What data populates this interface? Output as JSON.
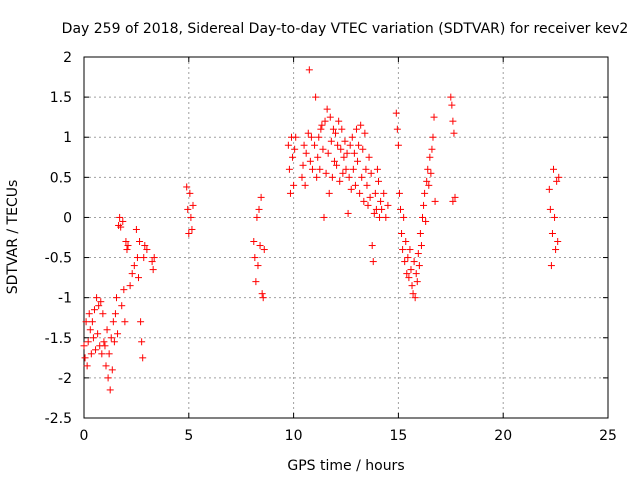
{
  "chart_data": {
    "type": "scatter",
    "title": "Day 259 of 2018, Sidereal Day-to-day VTEC variation (SDTVAR) for receiver kev2",
    "xlabel": "GPS time / hours",
    "ylabel": "SDTVAR / TECUs",
    "xlim": [
      0,
      25
    ],
    "ylim": [
      -2.5,
      2
    ],
    "xticks": [
      0,
      5,
      10,
      15,
      20,
      25
    ],
    "xtick_labels": [
      "0",
      "5",
      "10",
      "15",
      "20",
      "25"
    ],
    "yticks": [
      -2.5,
      -2,
      -1.5,
      -1,
      -0.5,
      0,
      0.5,
      1,
      1.5,
      2
    ],
    "ytick_labels": [
      "-2.5",
      "-2",
      "-1.5",
      "-1",
      "-0.5",
      "0",
      "0.5",
      "1",
      "1.5",
      "2"
    ],
    "grid": true,
    "marker": "+",
    "color": "#ff0000",
    "series": [
      {
        "name": "SDTVAR kev2",
        "points": [
          [
            0.0,
            -1.6
          ],
          [
            0.05,
            -1.75
          ],
          [
            0.1,
            -1.3
          ],
          [
            0.15,
            -1.85
          ],
          [
            0.2,
            -1.55
          ],
          [
            0.25,
            -1.2
          ],
          [
            0.3,
            -1.4
          ],
          [
            0.35,
            -1.7
          ],
          [
            0.4,
            -1.3
          ],
          [
            0.45,
            -1.5
          ],
          [
            0.5,
            -1.15
          ],
          [
            0.55,
            -1.65
          ],
          [
            0.6,
            -1.0
          ],
          [
            0.65,
            -1.45
          ],
          [
            0.7,
            -1.1
          ],
          [
            0.75,
            -1.6
          ],
          [
            0.8,
            -1.05
          ],
          [
            0.85,
            -1.7
          ],
          [
            0.9,
            -1.2
          ],
          [
            0.95,
            -1.55
          ],
          [
            1.0,
            -1.6
          ],
          [
            1.05,
            -1.85
          ],
          [
            1.1,
            -1.4
          ],
          [
            1.15,
            -2.0
          ],
          [
            1.2,
            -1.7
          ],
          [
            1.25,
            -2.15
          ],
          [
            1.3,
            -1.5
          ],
          [
            1.35,
            -1.9
          ],
          [
            1.4,
            -1.3
          ],
          [
            1.45,
            -1.55
          ],
          [
            1.5,
            -1.2
          ],
          [
            1.55,
            -1.0
          ],
          [
            1.6,
            -1.45
          ],
          [
            1.65,
            -0.1
          ],
          [
            1.7,
            0.0
          ],
          [
            1.75,
            -0.12
          ],
          [
            1.8,
            -1.1
          ],
          [
            1.85,
            -0.05
          ],
          [
            1.9,
            -0.9
          ],
          [
            1.95,
            -1.3
          ],
          [
            2.0,
            -0.3
          ],
          [
            2.05,
            -0.4
          ],
          [
            2.1,
            -0.35
          ],
          [
            2.2,
            -0.85
          ],
          [
            2.3,
            -0.7
          ],
          [
            2.4,
            -0.6
          ],
          [
            2.5,
            -0.15
          ],
          [
            2.55,
            -0.5
          ],
          [
            2.6,
            -0.75
          ],
          [
            2.65,
            -0.3
          ],
          [
            2.7,
            -1.3
          ],
          [
            2.75,
            -1.55
          ],
          [
            2.8,
            -1.75
          ],
          [
            2.85,
            -0.5
          ],
          [
            2.9,
            -0.35
          ],
          [
            3.0,
            -0.4
          ],
          [
            3.25,
            -0.55
          ],
          [
            3.3,
            -0.65
          ],
          [
            3.35,
            -0.5
          ],
          [
            4.9,
            0.38
          ],
          [
            4.95,
            0.1
          ],
          [
            5.0,
            -0.2
          ],
          [
            5.05,
            0.3
          ],
          [
            5.1,
            0.0
          ],
          [
            5.15,
            -0.15
          ],
          [
            5.2,
            0.15
          ],
          [
            8.1,
            -0.3
          ],
          [
            8.15,
            -0.5
          ],
          [
            8.2,
            -0.8
          ],
          [
            8.25,
            0.0
          ],
          [
            8.3,
            -0.6
          ],
          [
            8.35,
            0.1
          ],
          [
            8.4,
            -0.35
          ],
          [
            8.45,
            0.25
          ],
          [
            8.5,
            -0.95
          ],
          [
            8.55,
            -1.0
          ],
          [
            8.6,
            -0.4
          ],
          [
            9.75,
            0.9
          ],
          [
            9.8,
            0.6
          ],
          [
            9.85,
            0.3
          ],
          [
            9.9,
            1.0
          ],
          [
            9.95,
            0.75
          ],
          [
            10.0,
            0.4
          ],
          [
            10.05,
            0.85
          ],
          [
            10.1,
            1.0
          ],
          [
            10.4,
            0.5
          ],
          [
            10.45,
            0.65
          ],
          [
            10.5,
            0.9
          ],
          [
            10.55,
            0.4
          ],
          [
            10.6,
            0.8
          ],
          [
            10.7,
            1.05
          ],
          [
            10.75,
            1.84
          ],
          [
            10.8,
            0.7
          ],
          [
            10.85,
            1.0
          ],
          [
            10.9,
            0.6
          ],
          [
            11.0,
            0.9
          ],
          [
            11.05,
            1.5
          ],
          [
            11.1,
            0.5
          ],
          [
            11.15,
            0.75
          ],
          [
            11.2,
            1.0
          ],
          [
            11.25,
            0.6
          ],
          [
            11.3,
            1.1
          ],
          [
            11.35,
            1.15
          ],
          [
            11.4,
            0.85
          ],
          [
            11.45,
            0.0
          ],
          [
            11.5,
            1.2
          ],
          [
            11.55,
            0.55
          ],
          [
            11.6,
            1.35
          ],
          [
            11.65,
            0.8
          ],
          [
            11.7,
            0.3
          ],
          [
            11.75,
            1.25
          ],
          [
            11.8,
            0.95
          ],
          [
            11.85,
            0.5
          ],
          [
            11.9,
            1.1
          ],
          [
            11.95,
            0.7
          ],
          [
            12.0,
            1.05
          ],
          [
            12.05,
            0.65
          ],
          [
            12.1,
            0.9
          ],
          [
            12.15,
            1.2
          ],
          [
            12.2,
            0.45
          ],
          [
            12.25,
            0.85
          ],
          [
            12.3,
            1.1
          ],
          [
            12.35,
            0.55
          ],
          [
            12.4,
            0.75
          ],
          [
            12.45,
            0.95
          ],
          [
            12.5,
            0.6
          ],
          [
            12.55,
            0.8
          ],
          [
            12.6,
            0.05
          ],
          [
            12.65,
            0.5
          ],
          [
            12.7,
            0.9
          ],
          [
            12.75,
            0.35
          ],
          [
            12.8,
            1.0
          ],
          [
            12.85,
            0.6
          ],
          [
            12.9,
            0.8
          ],
          [
            12.95,
            0.4
          ],
          [
            13.0,
            1.1
          ],
          [
            13.05,
            0.7
          ],
          [
            13.1,
            0.9
          ],
          [
            13.15,
            0.3
          ],
          [
            13.2,
            1.15
          ],
          [
            13.25,
            0.5
          ],
          [
            13.3,
            0.85
          ],
          [
            13.35,
            0.2
          ],
          [
            13.4,
            1.05
          ],
          [
            13.45,
            0.6
          ],
          [
            13.5,
            0.4
          ],
          [
            13.55,
            0.15
          ],
          [
            13.6,
            0.75
          ],
          [
            13.65,
            0.25
          ],
          [
            13.7,
            0.55
          ],
          [
            13.75,
            -0.35
          ],
          [
            13.8,
            -0.55
          ],
          [
            13.85,
            0.05
          ],
          [
            13.9,
            0.3
          ],
          [
            13.95,
            0.1
          ],
          [
            14.0,
            0.6
          ],
          [
            14.05,
            0.45
          ],
          [
            14.1,
            0.0
          ],
          [
            14.15,
            0.2
          ],
          [
            14.2,
            0.1
          ],
          [
            14.3,
            0.3
          ],
          [
            14.4,
            0.0
          ],
          [
            14.5,
            0.15
          ],
          [
            14.9,
            1.3
          ],
          [
            14.95,
            1.1
          ],
          [
            15.0,
            0.9
          ],
          [
            15.05,
            0.3
          ],
          [
            15.1,
            0.1
          ],
          [
            15.15,
            -0.2
          ],
          [
            15.2,
            -0.4
          ],
          [
            15.25,
            0.0
          ],
          [
            15.3,
            -0.55
          ],
          [
            15.35,
            -0.3
          ],
          [
            15.4,
            -0.7
          ],
          [
            15.45,
            -0.5
          ],
          [
            15.5,
            -0.75
          ],
          [
            15.55,
            -0.4
          ],
          [
            15.6,
            -0.65
          ],
          [
            15.65,
            -0.85
          ],
          [
            15.7,
            -0.95
          ],
          [
            15.75,
            -0.55
          ],
          [
            15.8,
            -1.0
          ],
          [
            15.85,
            -0.7
          ],
          [
            15.9,
            -0.8
          ],
          [
            15.95,
            -0.45
          ],
          [
            16.0,
            -0.6
          ],
          [
            16.05,
            -0.2
          ],
          [
            16.1,
            -0.35
          ],
          [
            16.15,
            0.0
          ],
          [
            16.2,
            0.15
          ],
          [
            16.25,
            0.3
          ],
          [
            16.3,
            -0.05
          ],
          [
            16.35,
            0.45
          ],
          [
            16.4,
            0.6
          ],
          [
            16.45,
            0.4
          ],
          [
            16.5,
            0.75
          ],
          [
            16.55,
            0.55
          ],
          [
            16.6,
            0.85
          ],
          [
            16.65,
            1.0
          ],
          [
            16.7,
            1.25
          ],
          [
            16.75,
            0.2
          ],
          [
            17.5,
            1.5
          ],
          [
            17.55,
            1.4
          ],
          [
            17.6,
            1.2
          ],
          [
            17.65,
            1.05
          ],
          [
            17.7,
            0.25
          ],
          [
            17.6,
            0.2
          ],
          [
            22.2,
            0.35
          ],
          [
            22.25,
            0.1
          ],
          [
            22.3,
            -0.6
          ],
          [
            22.35,
            -0.2
          ],
          [
            22.4,
            0.6
          ],
          [
            22.45,
            0.0
          ],
          [
            22.5,
            -0.4
          ],
          [
            22.55,
            0.45
          ],
          [
            22.6,
            -0.3
          ],
          [
            22.65,
            0.5
          ]
        ]
      }
    ]
  }
}
